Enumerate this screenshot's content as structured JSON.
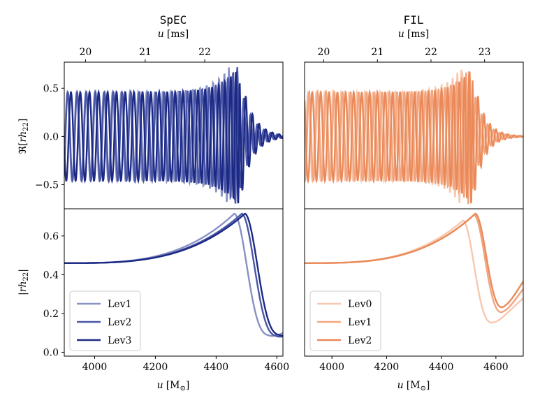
{
  "figure": {
    "left_title": "SpEC",
    "right_title": "FIL",
    "top_axis_label_var": "u",
    "top_axis_label_unit": "[ms]",
    "bottom_axis_label_var": "u",
    "bottom_axis_label_unit": "[M",
    "bottom_axis_label_sub": "⊙",
    "bottom_axis_label_close": "]",
    "ylabel_real_prefix": "ℜ[",
    "ylabel_real_var": "rh",
    "ylabel_real_sub": "22",
    "ylabel_real_suffix": "]",
    "ylabel_abs_prefix": "|",
    "ylabel_abs_var": "rh",
    "ylabel_abs_sub": "22",
    "ylabel_abs_suffix": "|"
  },
  "chart_data": [
    {
      "panel": "SpEC-real",
      "type": "line",
      "title": "SpEC",
      "xlabel": "u [M_sun]",
      "ylabel": "Re[r h22]",
      "xlim": [
        3900,
        4620
      ],
      "ylim": [
        -0.75,
        0.77
      ],
      "yticks": [
        -0.5,
        0.0,
        0.5
      ],
      "ytick_labels": [
        "−0.5",
        "0.0",
        "0.5"
      ],
      "top_axis": {
        "label": "u [ms]",
        "ticks": [
          20,
          21,
          22
        ],
        "tick_labels": [
          "20",
          "21",
          "22"
        ],
        "tick_positions_M": [
          3923.5,
          4120,
          4316
        ]
      },
      "series": [
        {
          "name": "Lev1",
          "color": "#8791c4",
          "t_merge": 4445,
          "shift": -38
        },
        {
          "name": "Lev2",
          "color": "#4a56a6",
          "t_merge": 4470,
          "shift": -10
        },
        {
          "name": "Lev3",
          "color": "#1d2a85",
          "t_merge": 4478,
          "shift": 0
        }
      ]
    },
    {
      "panel": "SpEC-abs",
      "type": "line",
      "xlabel": "u [M_sun]",
      "ylabel": "|r h22|",
      "xlim": [
        3900,
        4620
      ],
      "ylim": [
        -0.02,
        0.74
      ],
      "xticks": [
        4000,
        4200,
        4400,
        4600
      ],
      "xtick_labels": [
        "4000",
        "4200",
        "4400",
        "4600"
      ],
      "yticks": [
        0.0,
        0.2,
        0.4,
        0.6
      ],
      "ytick_labels": [
        "0.0",
        "0.2",
        "0.4",
        "0.6"
      ],
      "legend": {
        "location": "lower-left",
        "entries": [
          "Lev1",
          "Lev2",
          "Lev3"
        ]
      },
      "series": [
        {
          "name": "Lev1",
          "color": "#8791c4",
          "peak_u": 4460,
          "peak": 0.715,
          "final_u": 4620,
          "final": 0.1
        },
        {
          "name": "Lev2",
          "color": "#4a56a6",
          "peak_u": 4485,
          "peak": 0.715,
          "final_u": 4620,
          "final": 0.08
        },
        {
          "name": "Lev3",
          "color": "#1d2a85",
          "peak_u": 4495,
          "peak": 0.715,
          "final_u": 4620,
          "final": 0.08
        }
      ]
    },
    {
      "panel": "FIL-real",
      "type": "line",
      "title": "FIL",
      "xlabel": "u [M_sun]",
      "xlim": [
        3900,
        4700
      ],
      "ylim": [
        -0.75,
        0.77
      ],
      "top_axis": {
        "label": "u [ms]",
        "ticks": [
          20,
          21,
          22,
          23
        ],
        "tick_labels": [
          "20",
          "21",
          "22",
          "23"
        ],
        "tick_positions_M": [
          3923.5,
          4120,
          4316,
          4512
        ]
      },
      "series": [
        {
          "name": "Lev0",
          "color": "#f7c8ad",
          "t_merge": 4475,
          "shift": -25
        },
        {
          "name": "Lev1",
          "color": "#f2a57f",
          "t_merge": 4505,
          "shift": -5
        },
        {
          "name": "Lev2",
          "color": "#ea8a5a",
          "t_merge": 4515,
          "shift": 0
        }
      ]
    },
    {
      "panel": "FIL-abs",
      "type": "line",
      "xlabel": "u [M_sun]",
      "xlim": [
        3900,
        4700
      ],
      "ylim": [
        -0.02,
        0.74
      ],
      "xticks": [
        4000,
        4200,
        4400,
        4600
      ],
      "xtick_labels": [
        "4000",
        "4200",
        "4400",
        "4600"
      ],
      "legend": {
        "location": "lower-left",
        "entries": [
          "Lev0",
          "Lev1",
          "Lev2"
        ]
      },
      "series": [
        {
          "name": "Lev0",
          "color": "#f7c8ad",
          "peak_u": 4480,
          "peak": 0.68,
          "final_u": 4700,
          "final": 0.28
        },
        {
          "name": "Lev1",
          "color": "#f2a57f",
          "peak_u": 4520,
          "peak": 0.71,
          "final_u": 4700,
          "final": 0.33
        },
        {
          "name": "Lev2",
          "color": "#ea8a5a",
          "peak_u": 4525,
          "peak": 0.715,
          "final_u": 4700,
          "final": 0.37
        }
      ]
    }
  ]
}
